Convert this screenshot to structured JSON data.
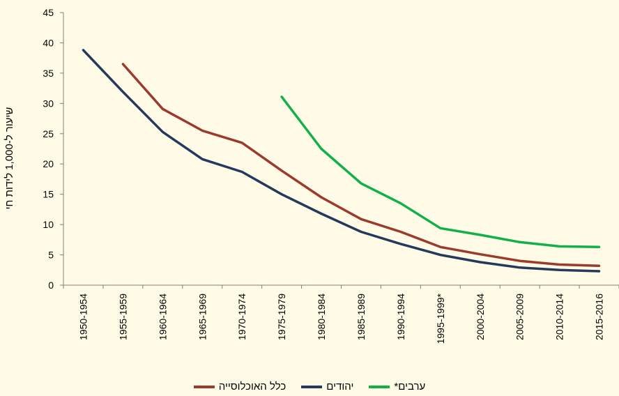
{
  "chart_data": {
    "type": "line",
    "title": "",
    "ylabel": "שיעור ל-1,000 לידות חי",
    "xlabel": "",
    "ylim": [
      0,
      45
    ],
    "yticks": [
      0,
      5,
      10,
      15,
      20,
      25,
      30,
      35,
      40,
      45
    ],
    "grid": false,
    "legend_position": "bottom",
    "categories": [
      "1950-1954",
      "1955-1959",
      "1960-1964",
      "1965-1969",
      "1970-1974",
      "1975-1979",
      "1980-1984",
      "1985-1989",
      "1990-1994",
      "1995-1999*",
      "2000-2004",
      "2005-2009",
      "2010-2014",
      "2015-2016"
    ],
    "series": [
      {
        "name": "כלל האוכלוסייה",
        "color": "#9B3B2E",
        "values": [
          null,
          36.5,
          29.1,
          25.5,
          23.5,
          18.9,
          14.5,
          10.9,
          8.8,
          6.3,
          5.1,
          4.0,
          3.4,
          3.2
        ]
      },
      {
        "name": "יהודים",
        "color": "#243A5C",
        "values": [
          38.8,
          31.9,
          25.3,
          20.8,
          18.7,
          15.0,
          11.8,
          8.8,
          6.8,
          5.0,
          3.8,
          2.9,
          2.5,
          2.3
        ]
      },
      {
        "name": "ערבים*",
        "color": "#11B14A",
        "values": [
          null,
          null,
          null,
          null,
          null,
          31.1,
          22.5,
          16.8,
          13.5,
          9.4,
          8.3,
          7.1,
          6.4,
          6.3
        ]
      }
    ],
    "legend_order": [
      2,
      1,
      0
    ]
  }
}
